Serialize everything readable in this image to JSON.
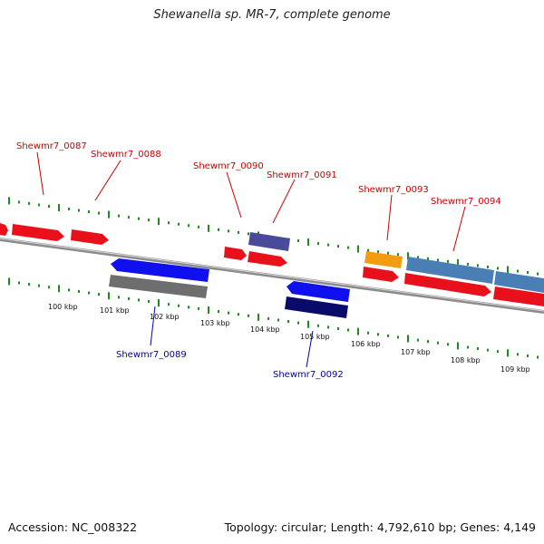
{
  "title": "Shewanella sp. MR-7, complete genome",
  "footer": {
    "accession": "Accession: NC_008322",
    "summary": "Topology: circular; Length: 4,792,610 bp; Genes: 4,149"
  },
  "colors": {
    "backbone": "#8c8c8c",
    "tick": "#1f8a1f",
    "forward_label": "#cc0000",
    "reverse_label": "#0000aa",
    "scale_label": "#111111"
  },
  "scale_labels": [
    "100 kbp",
    "101 kbp",
    "102 kbp",
    "103 kbp",
    "104 kbp",
    "105 kbp",
    "106 kbp",
    "107 kbp",
    "108 kbp",
    "109 kbp"
  ],
  "genes": [
    {
      "label": "Shewmr7_0087",
      "strand": "forward"
    },
    {
      "label": "Shewmr7_0088",
      "strand": "forward"
    },
    {
      "label": "Shewmr7_0089",
      "strand": "reverse"
    },
    {
      "label": "Shewmr7_0090",
      "strand": "forward"
    },
    {
      "label": "Shewmr7_0091",
      "strand": "forward"
    },
    {
      "label": "Shewmr7_0092",
      "strand": "reverse"
    },
    {
      "label": "Shewmr7_0093",
      "strand": "forward"
    },
    {
      "label": "Shewmr7_0094",
      "strand": "forward"
    }
  ]
}
